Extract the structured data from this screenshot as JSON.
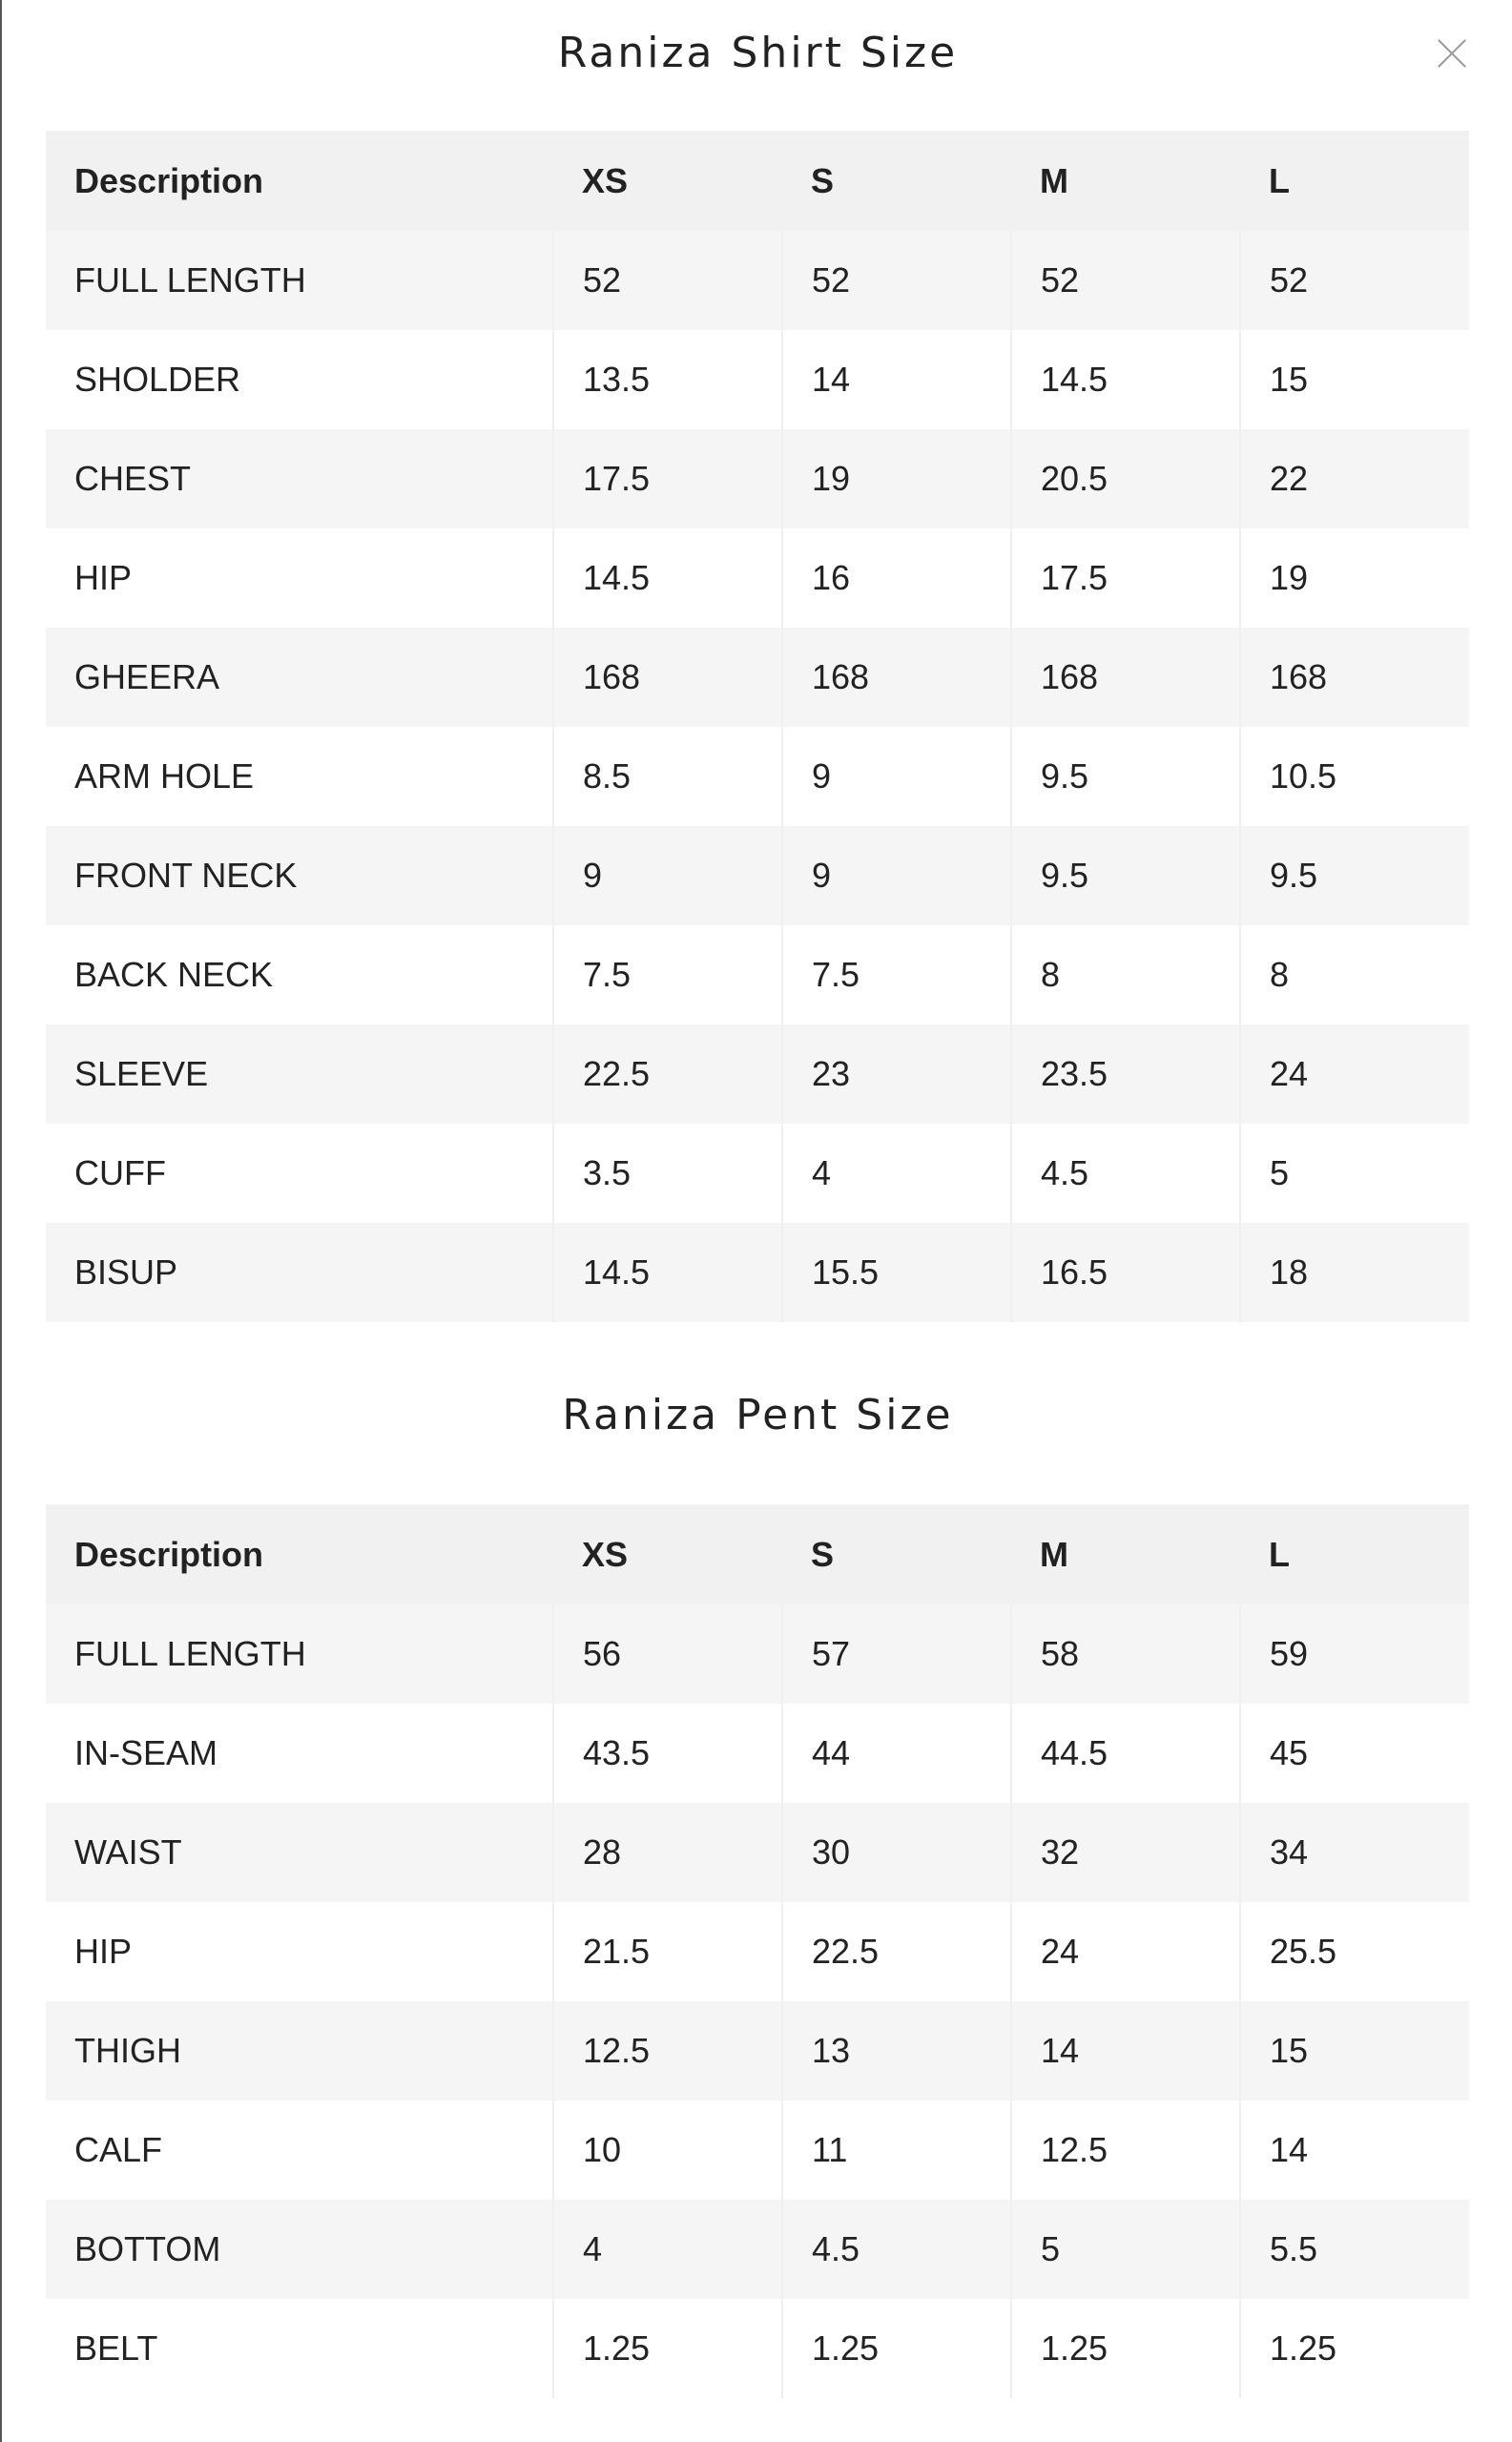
{
  "close_icon": "close-icon",
  "tables": [
    {
      "title": "Raniza Shirt Size",
      "headers": [
        "Description",
        "XS",
        "S",
        "M",
        "L"
      ],
      "rows": [
        [
          "FULL LENGTH",
          "52",
          "52",
          "52",
          "52"
        ],
        [
          "SHOLDER",
          "13.5",
          "14",
          "14.5",
          "15"
        ],
        [
          "CHEST",
          "17.5",
          "19",
          "20.5",
          "22"
        ],
        [
          "HIP",
          "14.5",
          "16",
          "17.5",
          "19"
        ],
        [
          "GHEERA",
          "168",
          "168",
          "168",
          "168"
        ],
        [
          "ARM HOLE",
          "8.5",
          "9",
          "9.5",
          "10.5"
        ],
        [
          "FRONT NECK",
          "9",
          "9",
          "9.5",
          "9.5"
        ],
        [
          "BACK NECK",
          "7.5",
          "7.5",
          "8",
          "8"
        ],
        [
          "SLEEVE",
          "22.5",
          "23",
          "23.5",
          "24"
        ],
        [
          "CUFF",
          "3.5",
          "4",
          "4.5",
          "5"
        ],
        [
          "BISUP",
          "14.5",
          "15.5",
          "16.5",
          "18"
        ]
      ]
    },
    {
      "title": "Raniza Pent Size",
      "headers": [
        "Description",
        "XS",
        "S",
        "M",
        "L"
      ],
      "rows": [
        [
          "FULL LENGTH",
          "56",
          "57",
          "58",
          "59"
        ],
        [
          "IN-SEAM",
          "43.5",
          "44",
          "44.5",
          "45"
        ],
        [
          "WAIST",
          "28",
          "30",
          "32",
          "34"
        ],
        [
          "HIP",
          "21.5",
          "22.5",
          "24",
          "25.5"
        ],
        [
          "THIGH",
          "12.5",
          "13",
          "14",
          "15"
        ],
        [
          "CALF",
          "10",
          "11",
          "12.5",
          "14"
        ],
        [
          "BOTTOM",
          "4",
          "4.5",
          "5",
          "5.5"
        ],
        [
          "BELT",
          "1.25",
          "1.25",
          "1.25",
          "1.25"
        ]
      ]
    }
  ]
}
